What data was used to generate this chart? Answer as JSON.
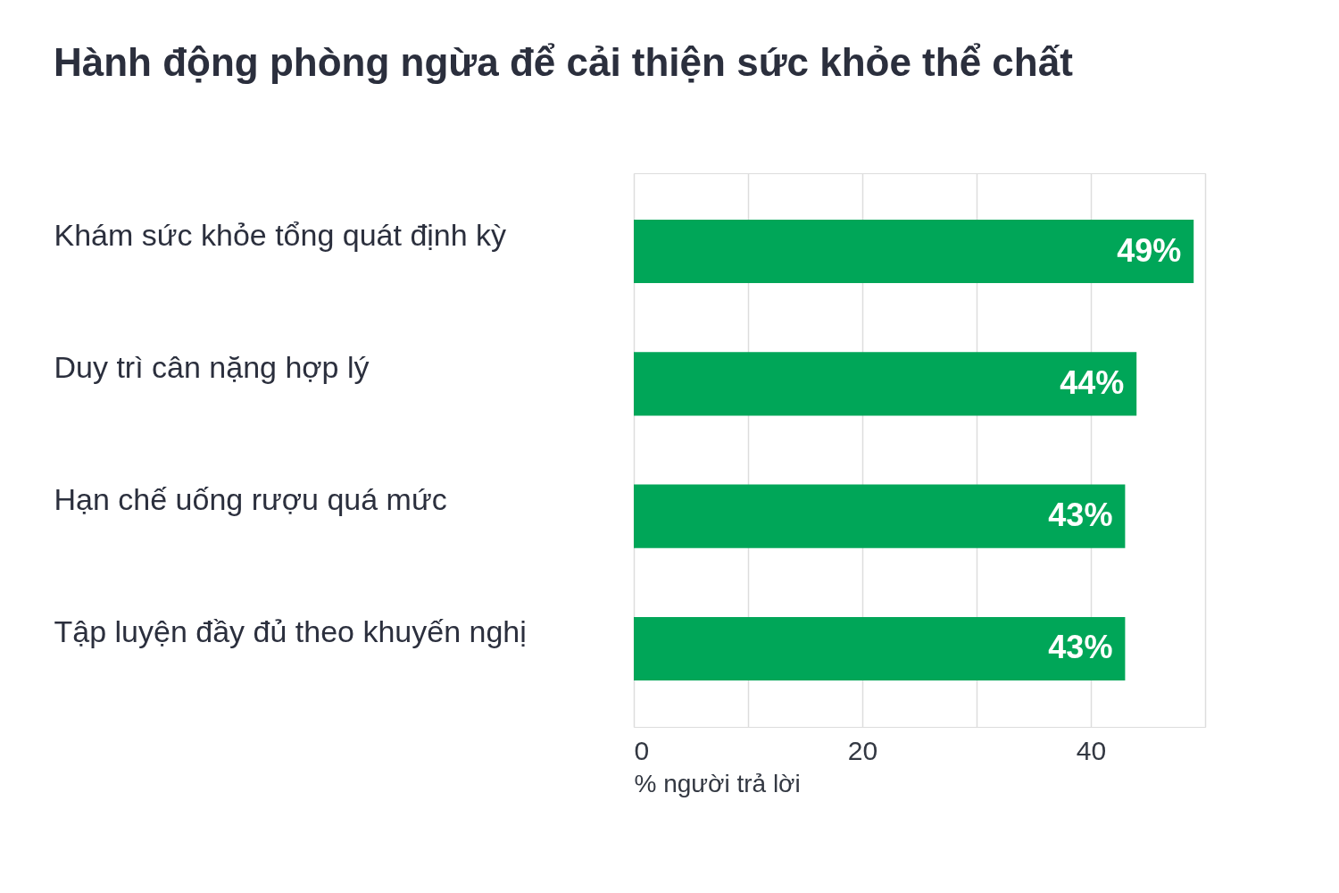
{
  "chart_data": {
    "type": "bar",
    "orientation": "horizontal",
    "title": "Hành động phòng ngừa để cải thiện sức khỏe thể chất",
    "xlabel": "% người trả lời",
    "categories": [
      "Khám sức khỏe tổng quát định kỳ",
      "Duy trì cân nặng hợp lý",
      "Hạn chế uống rượu quá mức",
      "Tập luyện đầy đủ  theo khuyến nghị"
    ],
    "values": [
      49,
      44,
      43,
      43
    ],
    "value_labels": [
      "49%",
      "44%",
      "43%",
      "43%"
    ],
    "color": "#00a658",
    "xlim": [
      0,
      50
    ],
    "xticks": [
      0,
      {
        "value": 10,
        "label": null
      },
      20,
      {
        "value": 30,
        "label": null
      },
      40,
      {
        "value": 50,
        "label": null
      }
    ],
    "grid": "x"
  }
}
